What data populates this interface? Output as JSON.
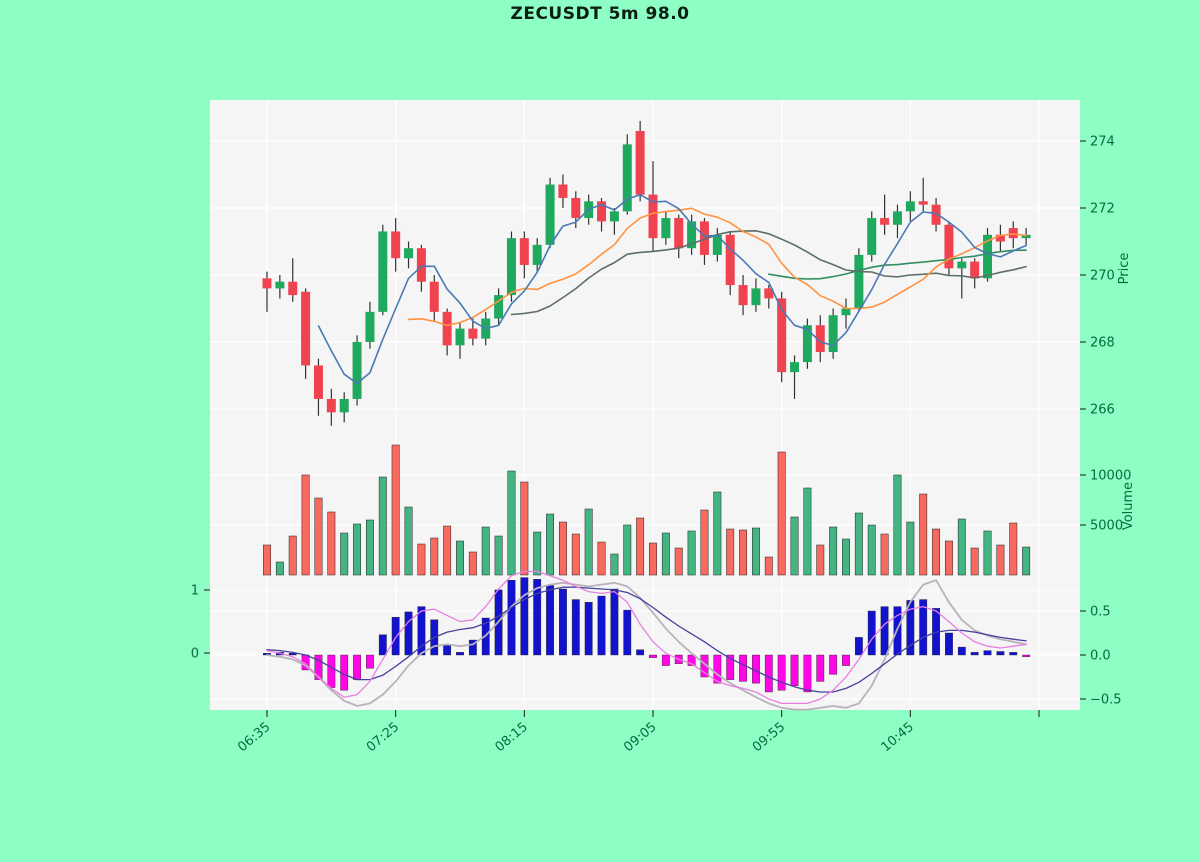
{
  "header": {
    "title": "ZECUSDT 5m 98.0",
    "symbol": "ZECUSDT",
    "interval": "5m",
    "score": "98.0"
  },
  "colors": {
    "page_bg": "#8dffc4",
    "plot_bg": "#f5f5f5",
    "grid": "#ffffff",
    "tick_text": "#0a6b3d",
    "tick_mark": "#2a2a2a",
    "title_text": "#0b1f12",
    "candle_up": "#1fa95e",
    "candle_down": "#ef4350",
    "wick": "#333333",
    "volume_up": "#45b483",
    "volume_down": "#f8695f",
    "bar_edge": "#222222",
    "ma_fast": "#4a7ab5",
    "ma_medium": "#ff9240",
    "ma_slow": "#5e6e68",
    "ma_xslow": "#2f8f62",
    "hist_up": "#1313cf",
    "hist_down": "#ff06e7",
    "macd_line": "#e87fe0",
    "signal_line": "#45419f",
    "score_line": "#b8b2bc"
  },
  "chart_data": {
    "type": "candlestick",
    "panels": [
      "price",
      "volume",
      "macd"
    ],
    "x_start": "06:35",
    "step_minutes": 5,
    "x_ticks": [
      {
        "i": 0,
        "label": "06:35"
      },
      {
        "i": 10,
        "label": "07:25"
      },
      {
        "i": 20,
        "label": "08:15"
      },
      {
        "i": 30,
        "label": "09:05"
      },
      {
        "i": 40,
        "label": "09:55"
      },
      {
        "i": 50,
        "label": "10:45"
      },
      {
        "i": 60,
        "label": ""
      }
    ],
    "price_axis": {
      "label": "Price",
      "ticks": [
        274,
        272,
        270,
        268,
        266
      ],
      "side": "right"
    },
    "volume_axis": {
      "label": "Volume",
      "ticks": [
        10000,
        5000
      ],
      "side": "right"
    },
    "macd_axis_right": {
      "ticks": [
        "0.5",
        "0.0",
        "−0.5"
      ],
      "tick_values": [
        0.5,
        0.0,
        -0.5
      ]
    },
    "macd_axis_left": {
      "ticks": [
        "1",
        "0"
      ],
      "tick_values": [
        1,
        0
      ]
    },
    "ohlc": [
      [
        269.9,
        270.1,
        268.9,
        269.6
      ],
      [
        269.6,
        270.0,
        269.3,
        269.8
      ],
      [
        269.8,
        270.5,
        269.2,
        269.4
      ],
      [
        269.5,
        269.6,
        266.9,
        267.3
      ],
      [
        267.3,
        267.5,
        265.8,
        266.3
      ],
      [
        266.3,
        266.6,
        265.5,
        265.9
      ],
      [
        265.9,
        266.5,
        265.6,
        266.3
      ],
      [
        266.3,
        268.2,
        266.1,
        268.0
      ],
      [
        268.0,
        269.2,
        267.8,
        268.9
      ],
      [
        268.9,
        271.5,
        268.8,
        271.3
      ],
      [
        271.3,
        271.7,
        270.1,
        270.5
      ],
      [
        270.5,
        271.0,
        270.2,
        270.8
      ],
      [
        270.8,
        270.9,
        269.5,
        269.8
      ],
      [
        269.8,
        270.0,
        268.6,
        268.9
      ],
      [
        268.9,
        269.0,
        267.6,
        267.9
      ],
      [
        267.9,
        268.6,
        267.5,
        268.4
      ],
      [
        268.4,
        268.7,
        267.9,
        268.1
      ],
      [
        268.1,
        268.9,
        267.9,
        268.7
      ],
      [
        268.7,
        269.6,
        268.5,
        269.4
      ],
      [
        269.4,
        271.3,
        269.2,
        271.1
      ],
      [
        271.1,
        271.3,
        269.9,
        270.3
      ],
      [
        270.3,
        271.1,
        270.1,
        270.9
      ],
      [
        270.9,
        272.9,
        270.8,
        272.7
      ],
      [
        272.7,
        273.0,
        272.0,
        272.3
      ],
      [
        272.3,
        272.5,
        271.4,
        271.7
      ],
      [
        271.7,
        272.4,
        271.5,
        272.2
      ],
      [
        272.2,
        272.3,
        271.3,
        271.6
      ],
      [
        271.6,
        272.0,
        271.2,
        271.9
      ],
      [
        271.9,
        274.2,
        271.8,
        273.9
      ],
      [
        274.3,
        274.6,
        272.2,
        272.4
      ],
      [
        272.4,
        273.4,
        270.7,
        271.1
      ],
      [
        271.1,
        271.9,
        270.9,
        271.7
      ],
      [
        271.7,
        271.8,
        270.5,
        270.8
      ],
      [
        270.8,
        271.8,
        270.6,
        271.6
      ],
      [
        271.6,
        271.7,
        270.3,
        270.6
      ],
      [
        270.6,
        271.4,
        270.4,
        271.2
      ],
      [
        271.2,
        271.3,
        269.4,
        269.7
      ],
      [
        269.7,
        270.0,
        268.8,
        269.1
      ],
      [
        269.1,
        269.9,
        268.9,
        269.6
      ],
      [
        269.6,
        269.7,
        269.0,
        269.3
      ],
      [
        269.3,
        269.5,
        266.8,
        267.1
      ],
      [
        267.1,
        267.6,
        266.3,
        267.4
      ],
      [
        267.4,
        268.7,
        267.2,
        268.5
      ],
      [
        268.5,
        268.8,
        267.4,
        267.7
      ],
      [
        267.7,
        269.0,
        267.5,
        268.8
      ],
      [
        268.8,
        269.3,
        268.4,
        269.0
      ],
      [
        269.0,
        270.8,
        268.9,
        270.6
      ],
      [
        270.6,
        271.9,
        270.4,
        271.7
      ],
      [
        271.7,
        272.4,
        271.2,
        271.5
      ],
      [
        271.5,
        272.1,
        271.1,
        271.9
      ],
      [
        271.9,
        272.5,
        271.6,
        272.2
      ],
      [
        272.2,
        272.9,
        271.9,
        272.1
      ],
      [
        272.1,
        272.3,
        271.3,
        271.5
      ],
      [
        271.5,
        271.6,
        270.0,
        270.2
      ],
      [
        270.2,
        270.5,
        269.3,
        270.4
      ],
      [
        270.4,
        270.5,
        269.6,
        269.9
      ],
      [
        269.9,
        271.4,
        269.8,
        271.2
      ],
      [
        271.2,
        271.5,
        270.7,
        271.0
      ],
      [
        271.4,
        271.6,
        270.8,
        271.1
      ],
      [
        271.1,
        271.4,
        270.9,
        271.2
      ]
    ],
    "volume": [
      3000,
      1300,
      3900,
      10000,
      7700,
      6300,
      4200,
      5100,
      5500,
      9800,
      13000,
      6800,
      3100,
      3700,
      4900,
      3400,
      2300,
      4800,
      3900,
      10400,
      9300,
      4300,
      6100,
      5300,
      4100,
      6600,
      3300,
      2100,
      5000,
      5700,
      3200,
      4200,
      2700,
      4400,
      6500,
      8300,
      4600,
      4500,
      4700,
      1800,
      12300,
      5800,
      8700,
      3000,
      4800,
      3600,
      6200,
      5000,
      4100,
      10000,
      5300,
      8100,
      4600,
      3400,
      5600,
      2700,
      4400,
      3000,
      5200,
      2800
    ],
    "macd_hist": [
      0.02,
      0.03,
      0.02,
      -0.17,
      -0.28,
      -0.37,
      -0.4,
      -0.28,
      -0.15,
      0.23,
      0.43,
      0.49,
      0.55,
      0.4,
      0.11,
      0.03,
      0.17,
      0.42,
      0.74,
      0.85,
      0.88,
      0.86,
      0.79,
      0.75,
      0.63,
      0.6,
      0.67,
      0.75,
      0.51,
      0.06,
      -0.03,
      -0.12,
      -0.1,
      -0.12,
      -0.25,
      -0.32,
      -0.28,
      -0.3,
      -0.32,
      -0.42,
      -0.4,
      -0.35,
      -0.42,
      -0.3,
      -0.22,
      -0.12,
      0.2,
      0.5,
      0.55,
      0.55,
      0.62,
      0.63,
      0.53,
      0.25,
      0.09,
      0.03,
      0.05,
      0.04,
      0.03,
      -0.02
    ],
    "macd_line": [
      0.05,
      0.02,
      -0.02,
      -0.1,
      -0.25,
      -0.38,
      -0.48,
      -0.45,
      -0.3,
      -0.05,
      0.2,
      0.38,
      0.5,
      0.52,
      0.45,
      0.38,
      0.4,
      0.55,
      0.75,
      0.9,
      0.95,
      0.95,
      0.9,
      0.85,
      0.78,
      0.72,
      0.7,
      0.72,
      0.6,
      0.35,
      0.15,
      0.02,
      -0.05,
      -0.1,
      -0.2,
      -0.3,
      -0.35,
      -0.38,
      -0.42,
      -0.5,
      -0.55,
      -0.55,
      -0.55,
      -0.5,
      -0.4,
      -0.25,
      -0.05,
      0.18,
      0.35,
      0.45,
      0.52,
      0.55,
      0.5,
      0.38,
      0.25,
      0.15,
      0.1,
      0.08,
      0.1,
      0.12
    ],
    "signal_line": [
      0.06,
      0.05,
      0.03,
      0.0,
      -0.06,
      -0.14,
      -0.22,
      -0.28,
      -0.28,
      -0.23,
      -0.13,
      -0.02,
      0.1,
      0.2,
      0.26,
      0.29,
      0.31,
      0.36,
      0.44,
      0.54,
      0.63,
      0.7,
      0.74,
      0.77,
      0.77,
      0.76,
      0.75,
      0.74,
      0.71,
      0.64,
      0.54,
      0.43,
      0.33,
      0.24,
      0.15,
      0.05,
      -0.04,
      -0.11,
      -0.18,
      -0.25,
      -0.31,
      -0.36,
      -0.4,
      -0.42,
      -0.42,
      -0.38,
      -0.31,
      -0.21,
      -0.1,
      0.01,
      0.11,
      0.2,
      0.26,
      0.28,
      0.28,
      0.26,
      0.23,
      0.2,
      0.18,
      0.16
    ],
    "score_line": [
      0.0,
      -0.02,
      -0.05,
      -0.12,
      -0.25,
      -0.4,
      -0.52,
      -0.58,
      -0.55,
      -0.45,
      -0.3,
      -0.12,
      0.02,
      0.1,
      0.12,
      0.1,
      0.12,
      0.22,
      0.38,
      0.55,
      0.68,
      0.76,
      0.8,
      0.82,
      0.8,
      0.78,
      0.8,
      0.82,
      0.78,
      0.65,
      0.48,
      0.3,
      0.15,
      0.02,
      -0.1,
      -0.22,
      -0.32,
      -0.4,
      -0.48,
      -0.55,
      -0.6,
      -0.62,
      -0.62,
      -0.6,
      -0.58,
      -0.6,
      -0.55,
      -0.35,
      -0.05,
      0.3,
      0.6,
      0.8,
      0.85,
      0.6,
      0.4,
      0.28,
      0.22,
      0.18,
      0.15,
      0.12
    ],
    "ma_windows": {
      "fast": 5,
      "medium": 12,
      "slow": 20,
      "xslow": 40
    }
  }
}
